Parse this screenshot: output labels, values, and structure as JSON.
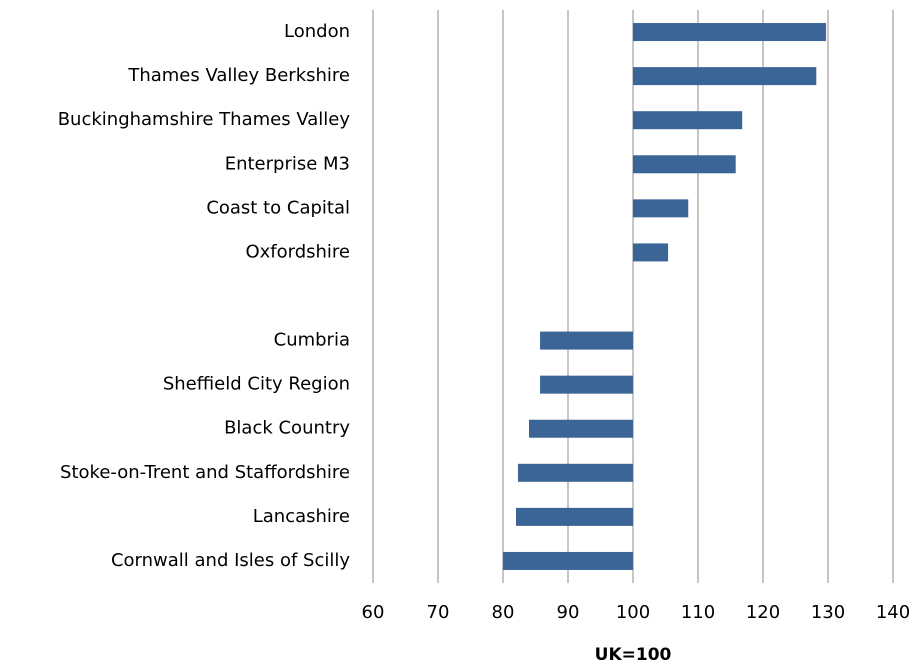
{
  "chart_data": {
    "type": "hbar",
    "x_label": "UK=100",
    "categories": [
      "London",
      "Thames Valley Berkshire",
      "Buckinghamshire Thames Valley",
      "Enterprise M3",
      "Coast to Capital",
      "Oxfordshire",
      null,
      "Cumbria",
      "Sheffield City Region",
      "Black Country",
      "Stoke-on-Trent and Staffordshire",
      "Lancashire",
      "Cornwall and Isles of Scilly"
    ],
    "values": [
      129.7,
      128.2,
      116.8,
      115.8,
      108.5,
      105.4,
      null,
      85.7,
      85.7,
      84.0,
      82.3,
      82.0,
      80.0
    ],
    "baseline": 100,
    "color": "#3b6497",
    "xlim": [
      60,
      140
    ],
    "xticks": [
      60,
      70,
      80,
      90,
      100,
      110,
      120,
      130,
      140
    ],
    "grid": true
  }
}
